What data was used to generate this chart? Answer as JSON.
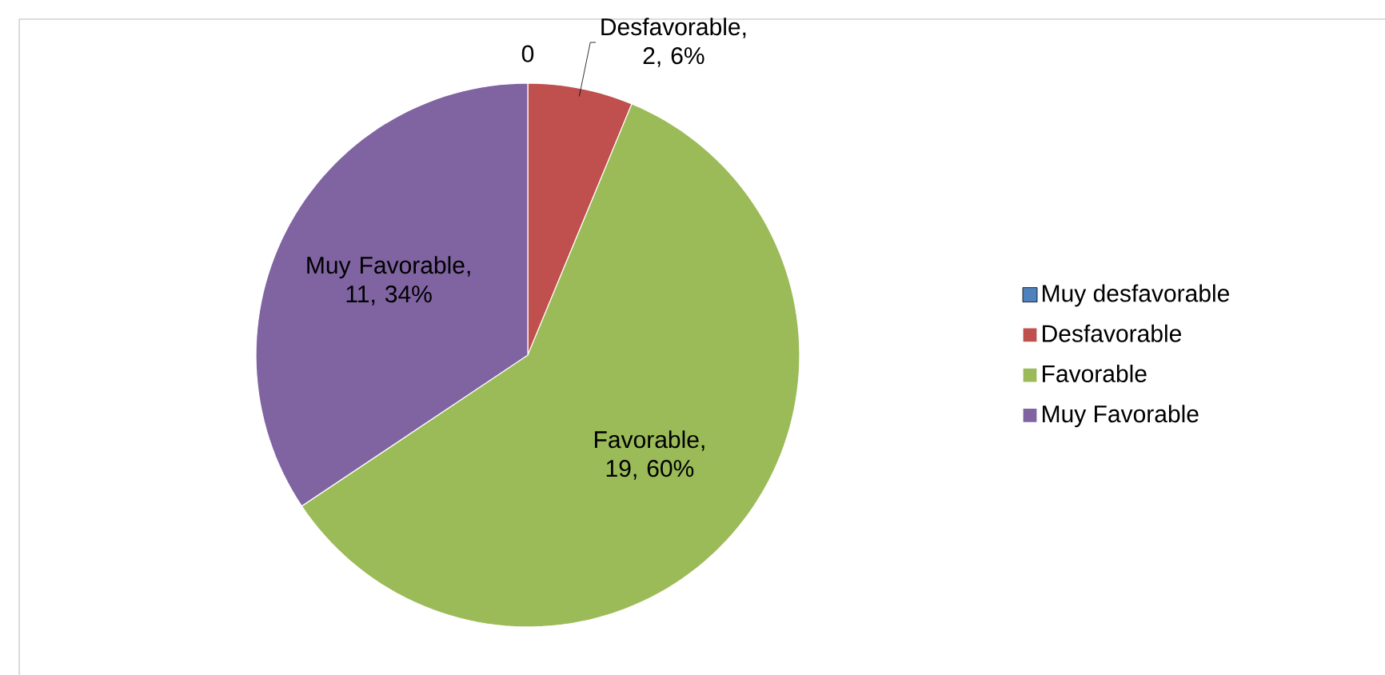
{
  "chart_data": {
    "type": "pie",
    "categories": [
      "Muy desfavorable",
      "Desfavorable",
      "Favorable",
      "Muy Favorable"
    ],
    "values": [
      0,
      2,
      19,
      11
    ],
    "colors": [
      "#4f81bd",
      "#c0504d",
      "#9bbb59",
      "#8064a2"
    ],
    "value_labels": [
      "0",
      "Desfavorable, 2, 6%",
      "Favorable, 19, 60%",
      "Muy Favorable, 11, 34%"
    ],
    "legend": "right"
  }
}
